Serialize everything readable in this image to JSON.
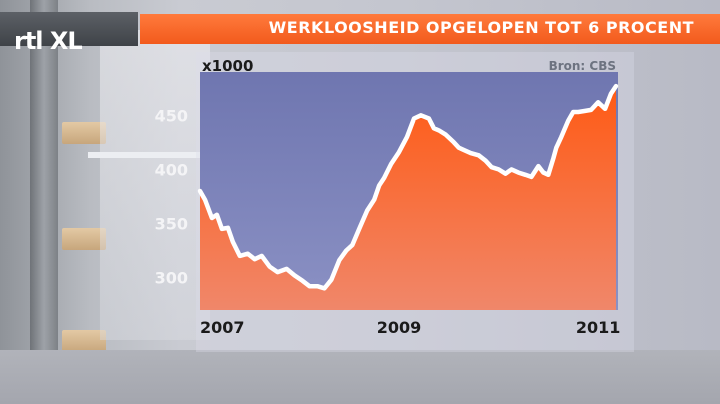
{
  "header": {
    "logo_text": "rtl XL",
    "title": "WERKLOOSHEID OPGELOPEN TOT 6 PROCENT"
  },
  "colors": {
    "title_bar": "#f25a1c",
    "area_top": "#ff5a14",
    "area_bottom": "#f0876a",
    "line": "#ffffff",
    "plot_bg": "#7f86bc"
  },
  "chart_data": {
    "type": "area",
    "ylabel": "x1000",
    "source": "Bron: CBS",
    "ylim": [
      270,
      490
    ],
    "xlim": [
      2007.0,
      2011.2
    ],
    "yticks": [
      "450",
      "400",
      "350",
      "300"
    ],
    "ytick_values": [
      450,
      400,
      350,
      300
    ],
    "xticks": [
      "2007",
      "2009",
      "2011"
    ],
    "xtick_values": [
      2007.0,
      2009.0,
      2011.0
    ],
    "grid": false,
    "series": [
      {
        "x": [
          2006.96,
          2007.05,
          2007.12,
          2007.17,
          2007.22,
          2007.28,
          2007.33,
          2007.4,
          2007.48,
          2007.55,
          2007.62,
          2007.7,
          2007.78,
          2007.87,
          2007.95,
          2008.03,
          2008.1,
          2008.18,
          2008.25,
          2008.32,
          2008.4,
          2008.47,
          2008.53,
          2008.6,
          2008.68,
          2008.75,
          2008.8,
          2008.85,
          2008.92,
          2009.0,
          2009.08,
          2009.15,
          2009.22,
          2009.3,
          2009.35,
          2009.4,
          2009.47,
          2009.55,
          2009.6,
          2009.65,
          2009.72,
          2009.8,
          2009.87,
          2009.93,
          2010.0,
          2010.07,
          2010.13,
          2010.2,
          2010.27,
          2010.33,
          2010.4,
          2010.45,
          2010.5,
          2010.55,
          2010.58,
          2010.63,
          2010.7,
          2010.75,
          2010.8,
          2010.87,
          2010.93,
          2011.0,
          2011.07,
          2011.13,
          2011.18
        ],
        "values": [
          380,
          372,
          355,
          358,
          345,
          346,
          333,
          320,
          322,
          317,
          320,
          310,
          305,
          308,
          302,
          297,
          292,
          292,
          290,
          298,
          316,
          325,
          330,
          345,
          362,
          372,
          385,
          392,
          405,
          416,
          430,
          447,
          450,
          447,
          438,
          436,
          432,
          425,
          420,
          418,
          415,
          413,
          408,
          402,
          400,
          396,
          400,
          397,
          395,
          393,
          403,
          397,
          395,
          410,
          420,
          430,
          445,
          453,
          453,
          454,
          455,
          462,
          456,
          470,
          477
        ]
      }
    ]
  }
}
